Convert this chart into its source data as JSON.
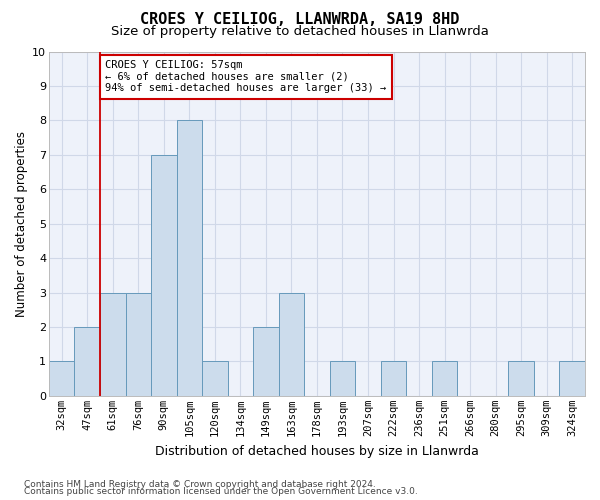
{
  "title": "CROES Y CEILIOG, LLANWRDA, SA19 8HD",
  "subtitle": "Size of property relative to detached houses in Llanwrda",
  "xlabel": "Distribution of detached houses by size in Llanwrda",
  "ylabel": "Number of detached properties",
  "categories": [
    "32sqm",
    "47sqm",
    "61sqm",
    "76sqm",
    "90sqm",
    "105sqm",
    "120sqm",
    "134sqm",
    "149sqm",
    "163sqm",
    "178sqm",
    "193sqm",
    "207sqm",
    "222sqm",
    "236sqm",
    "251sqm",
    "266sqm",
    "280sqm",
    "295sqm",
    "309sqm",
    "324sqm"
  ],
  "values": [
    1,
    2,
    3,
    3,
    7,
    8,
    1,
    0,
    2,
    3,
    0,
    1,
    0,
    1,
    0,
    1,
    0,
    0,
    1,
    0,
    1
  ],
  "bar_color": "#ccdcec",
  "bar_edge_color": "#6699bb",
  "grid_color": "#d0d8e8",
  "annotation_box_color": "#cc0000",
  "annotation_line_color": "#cc0000",
  "annotation_title": "CROES Y CEILIOG: 57sqm",
  "annotation_line1": "← 6% of detached houses are smaller (2)",
  "annotation_line2": "94% of semi-detached houses are larger (33) →",
  "red_line_x": 1.5,
  "ylim": [
    0,
    10
  ],
  "yticks": [
    0,
    1,
    2,
    3,
    4,
    5,
    6,
    7,
    8,
    9,
    10
  ],
  "footnote1": "Contains HM Land Registry data © Crown copyright and database right 2024.",
  "footnote2": "Contains public sector information licensed under the Open Government Licence v3.0.",
  "plot_bg_color": "#eef2fa",
  "fig_bg_color": "#ffffff",
  "title_fontsize": 11,
  "subtitle_fontsize": 9.5,
  "ylabel_fontsize": 8.5,
  "xlabel_fontsize": 9,
  "tick_fontsize": 7.5,
  "annotation_fontsize": 7.5,
  "footnote_fontsize": 6.5
}
